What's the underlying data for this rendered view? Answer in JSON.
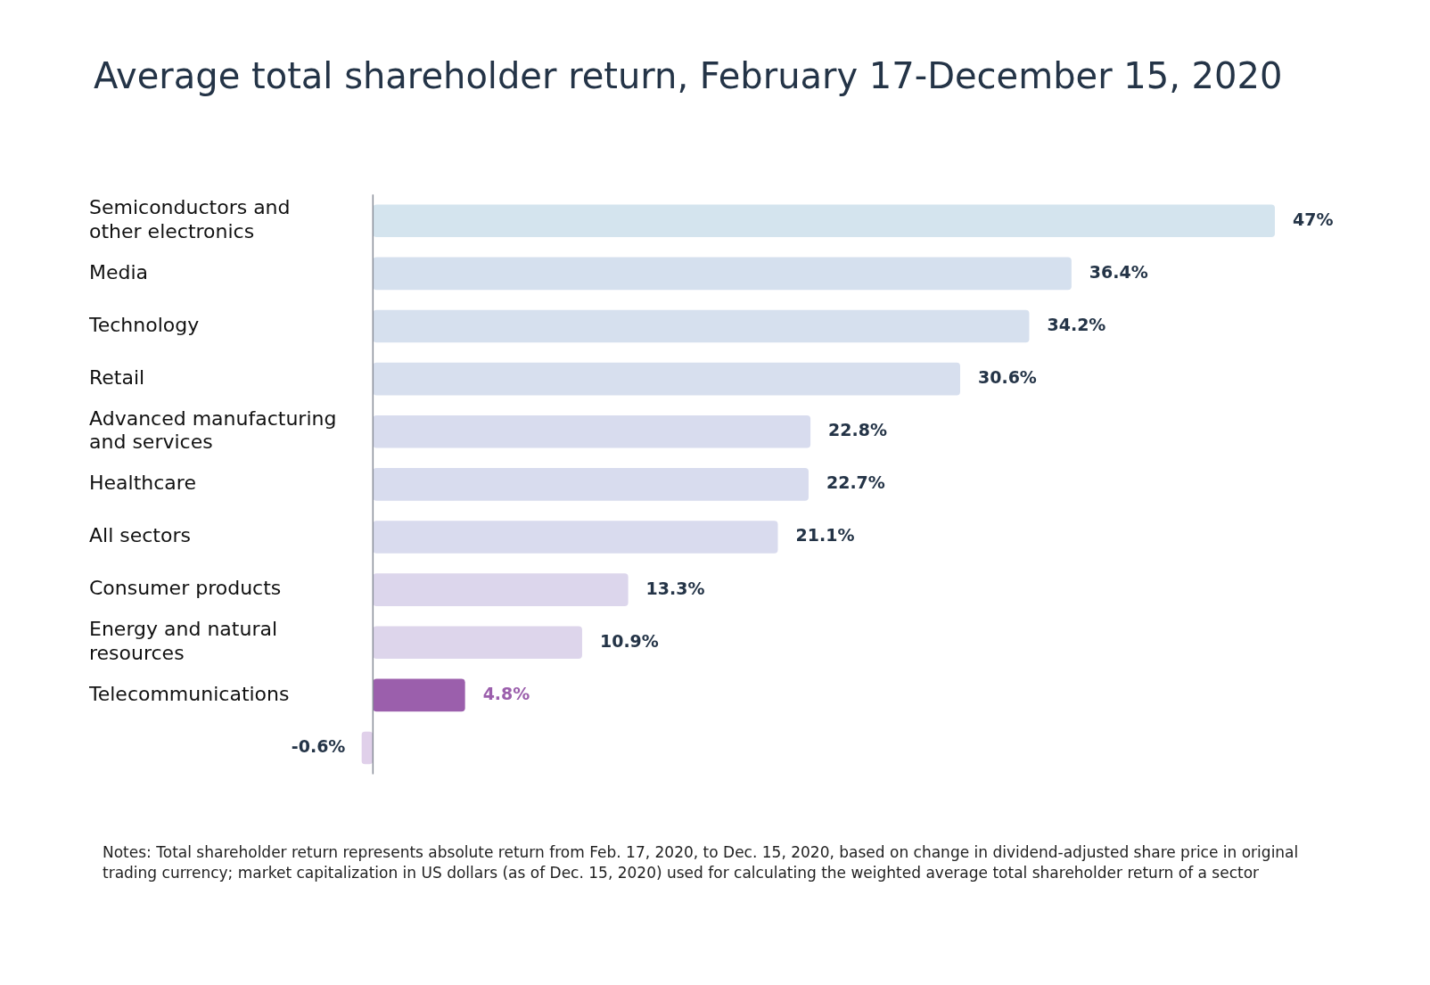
{
  "chart_data": {
    "type": "bar",
    "orientation": "horizontal",
    "title": "Average total shareholder return, February 17-December 15, 2020",
    "categories": [
      "Semiconductors and other electronics",
      "Media",
      "Technology",
      "Retail",
      "Advanced manufacturing and services",
      "Healthcare",
      "All sectors",
      "Consumer products",
      "Energy and natural resources",
      "Telecommunications",
      null
    ],
    "values": [
      47,
      36.4,
      34.2,
      30.6,
      22.8,
      22.7,
      21.1,
      13.3,
      10.9,
      4.8,
      -0.6
    ],
    "value_labels": [
      "47%",
      "36.4%",
      "34.2%",
      "30.6%",
      "22.8%",
      "22.7%",
      "21.1%",
      "13.3%",
      "10.9%",
      "4.8%",
      "-0.6%"
    ],
    "colors": [
      "#d4e4ee",
      "#d5e0ee",
      "#d6e0ee",
      "#d7dfee",
      "#d8dcee",
      "#d8dcee",
      "#d9dbee",
      "#dcd6ec",
      "#ddd5eb",
      "#9b5fac",
      "#e0d0ea"
    ],
    "tick_labels": "y",
    "legend": false,
    "annotations": [
      "Notes: Total shareholder return represents absolute return from Feb. 17, 2020, to Dec. 15, 2020, based on change in dividend-adjusted share price in original trading currency; market capitalization in US dollars (as of Dec. 15, 2020) used for calculating the weighted average total shareholder return of a sector"
    ]
  }
}
